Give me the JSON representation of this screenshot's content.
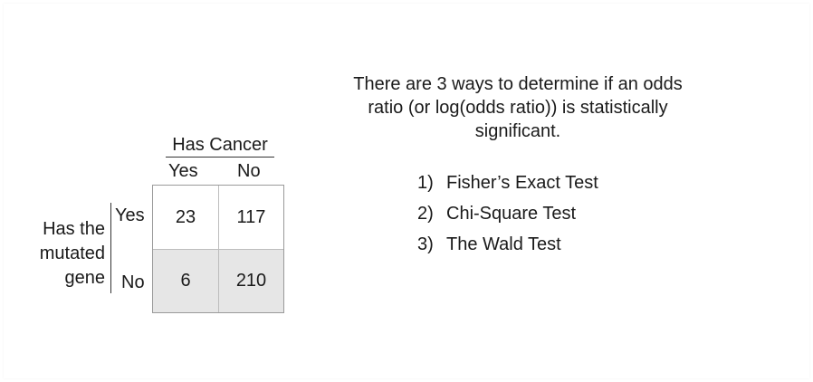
{
  "table": {
    "column_header": "Has Cancer",
    "column_labels": [
      "Yes",
      "No"
    ],
    "row_header": "Has the mutated gene",
    "row_labels": [
      "Yes",
      "No"
    ],
    "cells": [
      [
        "23",
        "117"
      ],
      [
        "6",
        "210"
      ]
    ]
  },
  "intro_text": "There are 3 ways to determine if an odds ratio (or log(odds ratio)) is statistically significant.",
  "methods": [
    {
      "number": "1)",
      "label": "Fisher’s Exact Test"
    },
    {
      "number": "2)",
      "label": "Chi-Square Test"
    },
    {
      "number": "3)",
      "label": "The Wald Test"
    }
  ],
  "colors": {
    "background": "#ffffff",
    "text": "#1a1a1a",
    "shaded_row": "#e6e6e6",
    "grid_border": "#9a9a9a"
  }
}
